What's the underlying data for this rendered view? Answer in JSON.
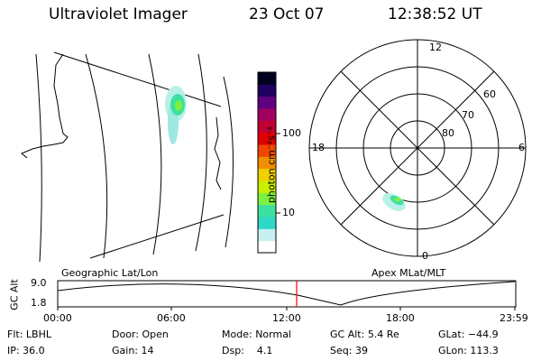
{
  "header": {
    "instrument": "Ultraviolet Imager",
    "date": "23 Oct 07",
    "time": "12:38:52 UT"
  },
  "colorbar": {
    "label": "photon cm⁻²s⁻¹",
    "tick_100": "100",
    "tick_10": "10",
    "colors": [
      "#ffffff",
      "#c8f0f0",
      "#2ed8c8",
      "#3ee0a0",
      "#7cf040",
      "#c8f000",
      "#f0d000",
      "#f09000",
      "#f04800",
      "#e00000",
      "#c00030",
      "#a00060",
      "#600080",
      "#200060",
      "#000020"
    ]
  },
  "map_left": {
    "label": "Geographic Lat/Lon"
  },
  "map_right": {
    "label": "Apex MLat/MLT",
    "mlt_labels": {
      "top": "12",
      "left": "18",
      "right": "6",
      "bottom": "0"
    },
    "lat_labels": [
      "60",
      "70",
      "80"
    ]
  },
  "altitude_plot": {
    "ylabel": "GC Alt",
    "y_top": "9.0",
    "y_bottom": "1.8",
    "x_ticks": [
      "00:00",
      "06:00",
      "12:00",
      "18:00",
      "23:59"
    ],
    "current_time_marker": "12:38:52",
    "marker_color": "#ff0000"
  },
  "status": {
    "filter_label": "Flt:",
    "filter_value": "LBHL",
    "ip_label": "IP:",
    "ip_value": "36.0",
    "door_label": "Door:",
    "door_value": "Open",
    "gain_label": "Gain:",
    "gain_value": "14",
    "mode_label": "Mode:",
    "mode_value": "Normal",
    "dsp_label": "Dsp:",
    "dsp_value": "4.1",
    "gcalt_label": "GC Alt:",
    "gcalt_value": "5.4 Re",
    "seq_label": "Seq:",
    "seq_value": "39",
    "glat_label": "GLat:",
    "glat_value": "−44.9",
    "glon_label": "GLon:",
    "glon_value": "113.3"
  }
}
